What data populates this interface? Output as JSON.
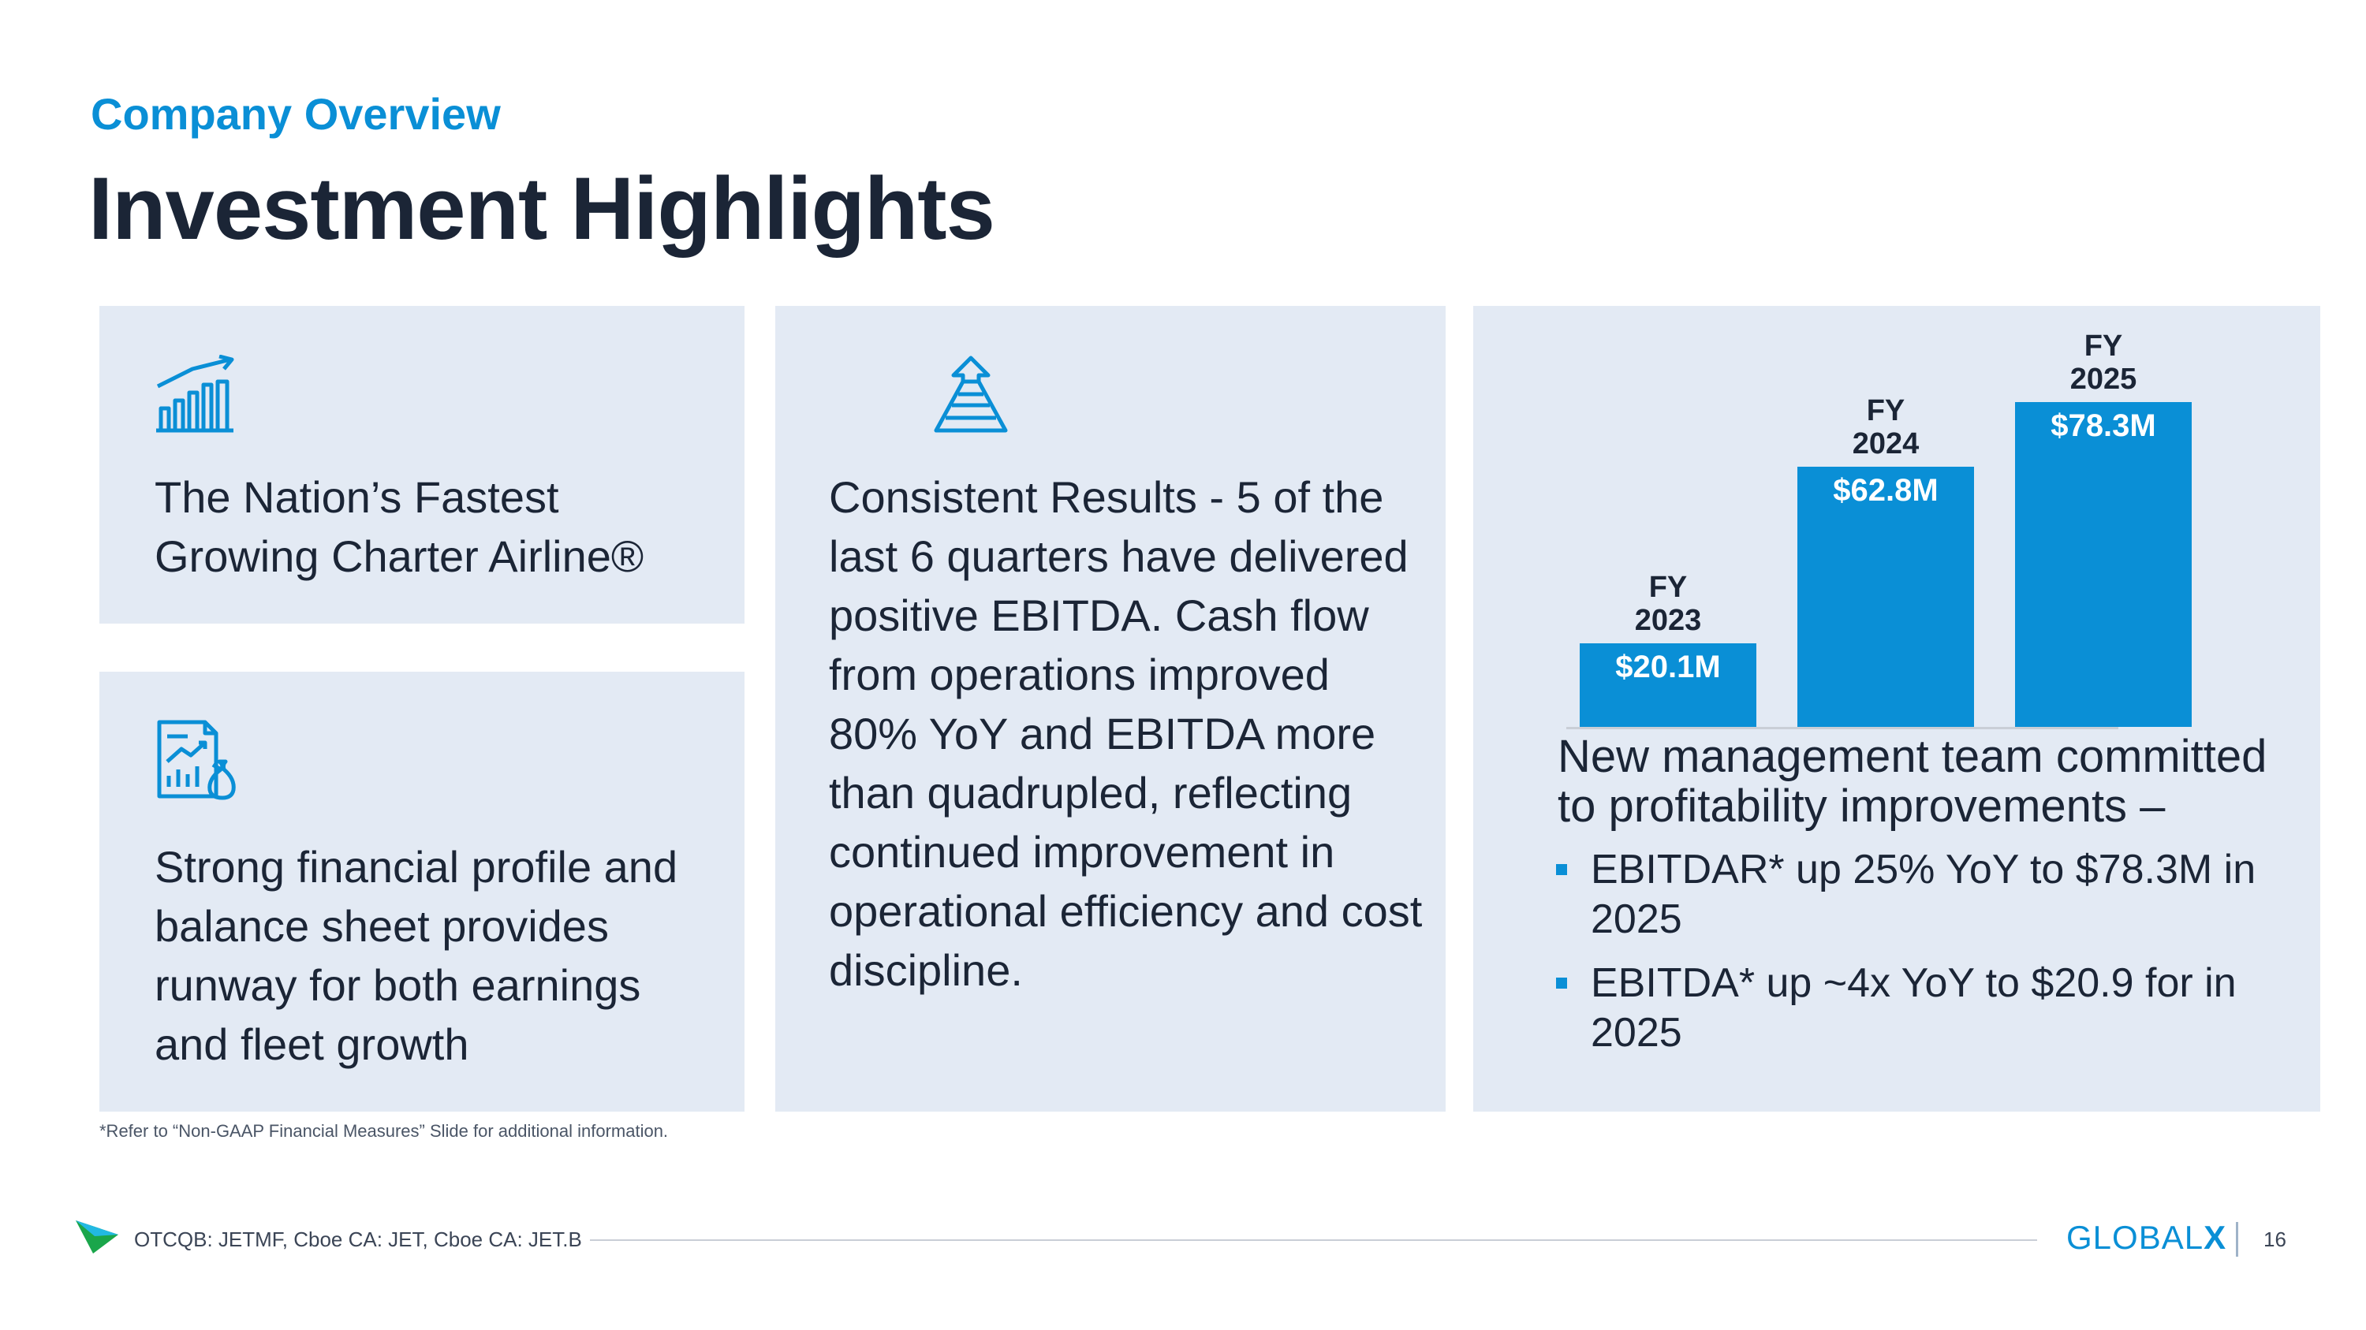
{
  "header": {
    "section": "Company Overview",
    "title": "Investment Highlights"
  },
  "cards": {
    "growth": {
      "icon": "bar-chart-growth-icon",
      "text": "The Nation’s Fastest Growing Charter Airline®"
    },
    "financial": {
      "icon": "financial-report-icon",
      "text": "Strong financial profile and balance sheet provides runway for both earnings and fleet growth"
    },
    "results": {
      "icon": "rising-arrow-road-icon",
      "text": "Consistent Results - 5 of the last 6 quarters have delivered positive EBITDA. Cash flow from operations improved 80% YoY and EBITDA more than quadrupled, reflecting continued improvement in operational efficiency and cost discipline."
    }
  },
  "chart_data": {
    "type": "bar",
    "categories": [
      "FY 2023",
      "FY 2024",
      "FY 2025"
    ],
    "category_lines": [
      [
        "FY",
        "2023"
      ],
      [
        "FY",
        "2024"
      ],
      [
        "FY",
        "2025"
      ]
    ],
    "values": [
      20.1,
      62.8,
      78.3
    ],
    "labels": [
      "$20.1M",
      "$62.8M",
      "$78.3M"
    ],
    "unit": "$M",
    "ylim": [
      0,
      78.3
    ],
    "title": "",
    "xlabel": "",
    "ylabel": "",
    "color": "#0a8fd6"
  },
  "chart_caption": {
    "headline": "New management team committed to profitability improvements –",
    "bullets": [
      "EBITDAR* up 25% YoY to $78.3M in 2025",
      "EBITDA* up ~4x YoY to $20.9 for in 2025"
    ]
  },
  "footnote": "*Refer to “Non-GAAP Financial Measures” Slide for additional information.",
  "footer": {
    "ticker": "OTCQB: JETMF, Cboe CA: JET, Cboe CA: JET.B",
    "logo_main": "GLOBAL",
    "logo_x": "X",
    "page_number": "16"
  },
  "colors": {
    "accent": "#0a8fd6",
    "card_bg": "#e3eaf4",
    "text_dark": "#1b2536"
  }
}
